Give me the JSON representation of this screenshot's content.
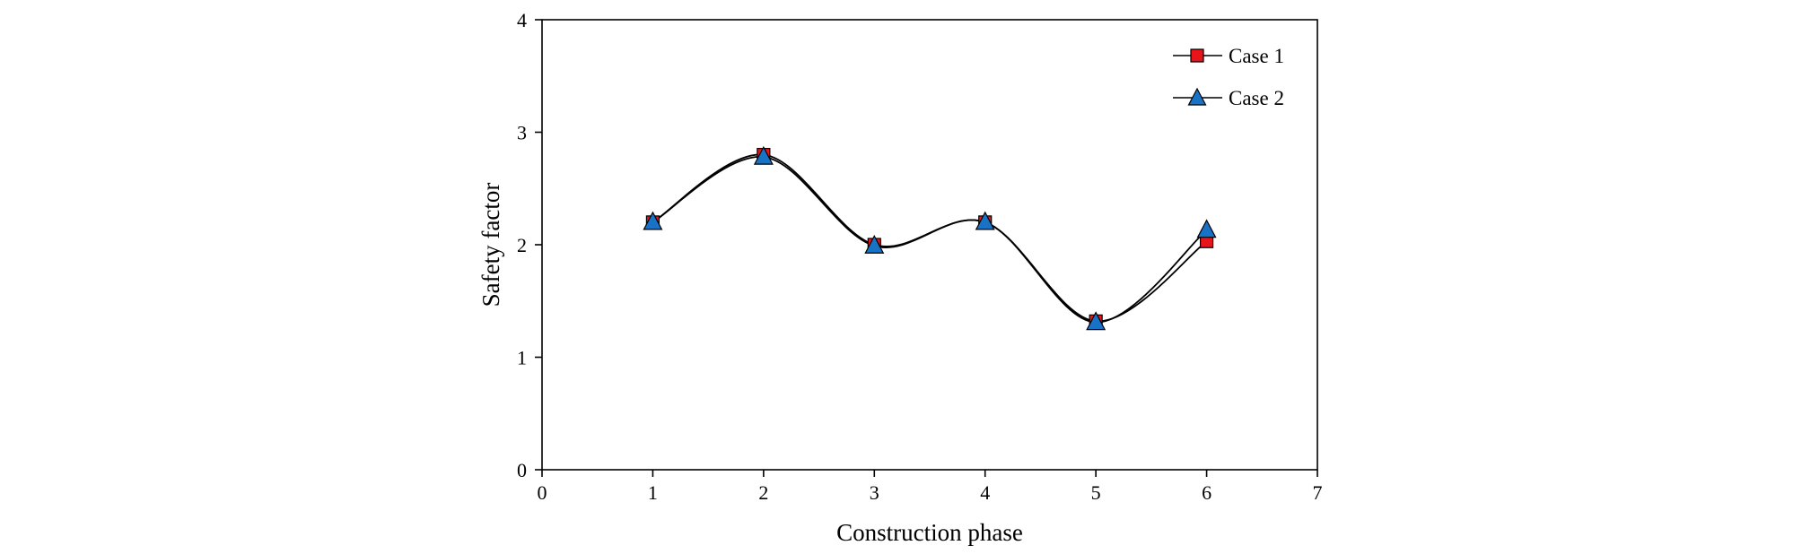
{
  "chart_data": {
    "type": "line",
    "title": "",
    "xlabel": "Construction phase",
    "ylabel": "Safety factor",
    "xlim": [
      0,
      7
    ],
    "ylim": [
      0,
      4
    ],
    "xticks": [
      0,
      1,
      2,
      3,
      4,
      5,
      6,
      7
    ],
    "yticks": [
      0,
      1,
      2,
      3,
      4
    ],
    "xtick_labels": [
      "0",
      "1",
      "2",
      "3",
      "4",
      "5",
      "6",
      "7"
    ],
    "ytick_labels": [
      "0",
      "1",
      "2",
      "3",
      "4"
    ],
    "grid": false,
    "legend_position": "top-right",
    "smooth": true,
    "x": [
      1,
      2,
      3,
      4,
      5,
      6
    ],
    "series": [
      {
        "name": "Case 1",
        "marker": "square",
        "marker_color": "#e8141c",
        "values": [
          2.2,
          2.8,
          2.0,
          2.2,
          1.32,
          2.03
        ]
      },
      {
        "name": "Case 2",
        "marker": "triangle",
        "marker_color": "#1873c6",
        "values": [
          2.2,
          2.78,
          1.99,
          2.2,
          1.31,
          2.13
        ]
      }
    ],
    "line_color": "#000000"
  }
}
